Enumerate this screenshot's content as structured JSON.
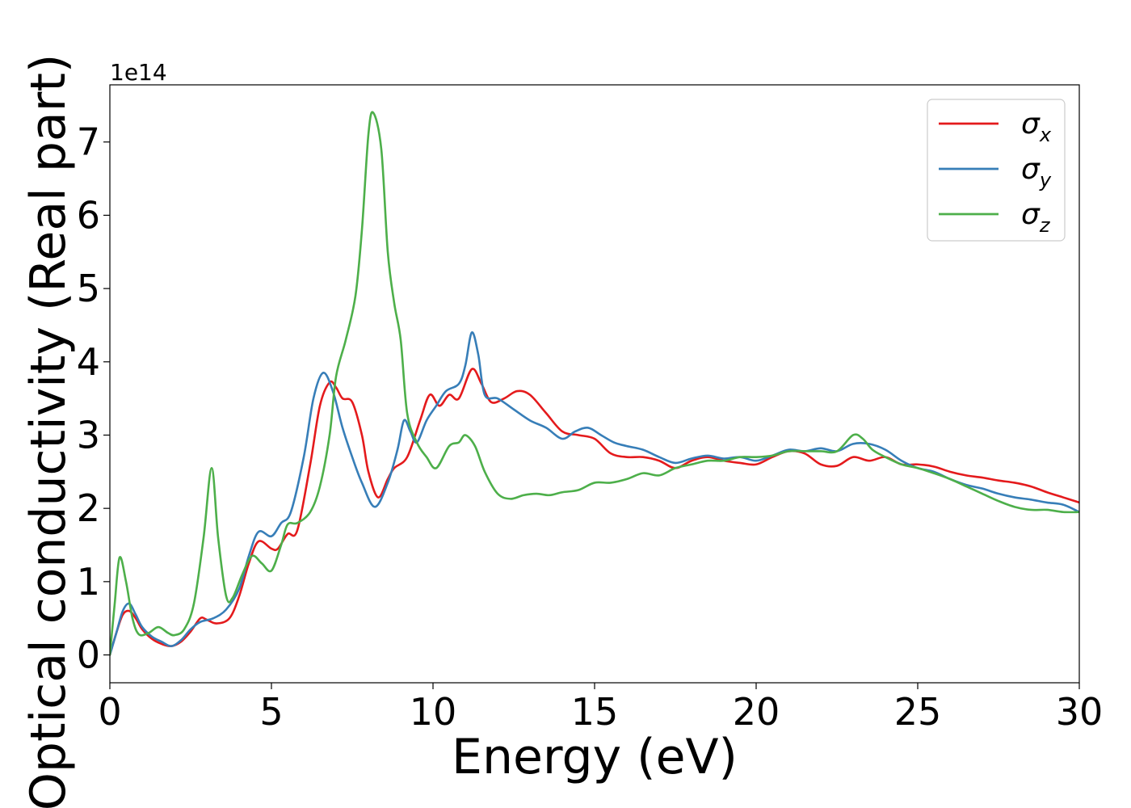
{
  "chart_data": {
    "type": "line",
    "title": "",
    "xlabel": "Energy (eV)",
    "ylabel": "Optical conductivity (Real part)",
    "y_offset_label": "1e14",
    "xlim": [
      0,
      30
    ],
    "ylim": [
      -0.38,
      7.78
    ],
    "y_scale_factor": 100000000000000.0,
    "xticks": [
      0,
      5,
      10,
      15,
      20,
      25,
      30
    ],
    "yticks": [
      0,
      1,
      2,
      3,
      4,
      5,
      6,
      7
    ],
    "grid": false,
    "legend": "top-right",
    "series": [
      {
        "name": "σx",
        "sym": "σ",
        "sub": "x",
        "color": "#e41a1c",
        "points": [
          [
            0,
            0
          ],
          [
            0.2,
            0.3
          ],
          [
            0.4,
            0.55
          ],
          [
            0.6,
            0.6
          ],
          [
            0.8,
            0.5
          ],
          [
            1.0,
            0.35
          ],
          [
            1.3,
            0.22
          ],
          [
            1.6,
            0.15
          ],
          [
            1.9,
            0.12
          ],
          [
            2.2,
            0.18
          ],
          [
            2.5,
            0.32
          ],
          [
            2.8,
            0.5
          ],
          [
            3.0,
            0.48
          ],
          [
            3.3,
            0.43
          ],
          [
            3.7,
            0.5
          ],
          [
            4.0,
            0.8
          ],
          [
            4.3,
            1.25
          ],
          [
            4.6,
            1.55
          ],
          [
            5.0,
            1.45
          ],
          [
            5.2,
            1.45
          ],
          [
            5.5,
            1.65
          ],
          [
            5.8,
            1.7
          ],
          [
            6.2,
            2.6
          ],
          [
            6.5,
            3.4
          ],
          [
            6.8,
            3.72
          ],
          [
            7.0,
            3.65
          ],
          [
            7.2,
            3.5
          ],
          [
            7.5,
            3.45
          ],
          [
            7.8,
            3.0
          ],
          [
            8.0,
            2.5
          ],
          [
            8.3,
            2.15
          ],
          [
            8.6,
            2.4
          ],
          [
            8.8,
            2.55
          ],
          [
            9.2,
            2.7
          ],
          [
            9.6,
            3.2
          ],
          [
            9.9,
            3.55
          ],
          [
            10.2,
            3.4
          ],
          [
            10.5,
            3.55
          ],
          [
            10.8,
            3.5
          ],
          [
            11.2,
            3.9
          ],
          [
            11.5,
            3.7
          ],
          [
            11.8,
            3.45
          ],
          [
            12.2,
            3.5
          ],
          [
            12.6,
            3.6
          ],
          [
            13.0,
            3.55
          ],
          [
            13.5,
            3.3
          ],
          [
            14.0,
            3.05
          ],
          [
            14.5,
            3.0
          ],
          [
            15.0,
            2.95
          ],
          [
            15.5,
            2.75
          ],
          [
            16.0,
            2.7
          ],
          [
            16.5,
            2.7
          ],
          [
            17.0,
            2.65
          ],
          [
            17.5,
            2.55
          ],
          [
            18.0,
            2.65
          ],
          [
            18.5,
            2.7
          ],
          [
            19.0,
            2.65
          ],
          [
            19.5,
            2.62
          ],
          [
            20.0,
            2.6
          ],
          [
            20.5,
            2.7
          ],
          [
            21.0,
            2.78
          ],
          [
            21.5,
            2.75
          ],
          [
            22.0,
            2.6
          ],
          [
            22.5,
            2.58
          ],
          [
            23.0,
            2.7
          ],
          [
            23.5,
            2.65
          ],
          [
            24.0,
            2.7
          ],
          [
            24.5,
            2.6
          ],
          [
            25.0,
            2.6
          ],
          [
            25.5,
            2.57
          ],
          [
            26.0,
            2.5
          ],
          [
            26.5,
            2.45
          ],
          [
            27.0,
            2.42
          ],
          [
            27.5,
            2.38
          ],
          [
            28.0,
            2.35
          ],
          [
            28.5,
            2.3
          ],
          [
            29.0,
            2.22
          ],
          [
            29.5,
            2.15
          ],
          [
            30.0,
            2.08
          ]
        ]
      },
      {
        "name": "σy",
        "sym": "σ",
        "sub": "y",
        "color": "#377eb8",
        "points": [
          [
            0,
            0
          ],
          [
            0.2,
            0.3
          ],
          [
            0.4,
            0.6
          ],
          [
            0.6,
            0.7
          ],
          [
            0.8,
            0.55
          ],
          [
            1.0,
            0.38
          ],
          [
            1.3,
            0.25
          ],
          [
            1.6,
            0.18
          ],
          [
            1.9,
            0.12
          ],
          [
            2.2,
            0.2
          ],
          [
            2.5,
            0.35
          ],
          [
            2.8,
            0.45
          ],
          [
            3.2,
            0.5
          ],
          [
            3.6,
            0.62
          ],
          [
            4.0,
            0.9
          ],
          [
            4.3,
            1.35
          ],
          [
            4.6,
            1.68
          ],
          [
            5.0,
            1.62
          ],
          [
            5.3,
            1.8
          ],
          [
            5.6,
            1.95
          ],
          [
            6.0,
            2.7
          ],
          [
            6.3,
            3.5
          ],
          [
            6.6,
            3.85
          ],
          [
            6.9,
            3.6
          ],
          [
            7.2,
            3.1
          ],
          [
            7.5,
            2.7
          ],
          [
            7.8,
            2.35
          ],
          [
            8.2,
            2.02
          ],
          [
            8.6,
            2.35
          ],
          [
            8.9,
            2.8
          ],
          [
            9.1,
            3.2
          ],
          [
            9.3,
            3.05
          ],
          [
            9.5,
            2.9
          ],
          [
            9.8,
            3.2
          ],
          [
            10.1,
            3.4
          ],
          [
            10.4,
            3.6
          ],
          [
            10.8,
            3.7
          ],
          [
            11.0,
            3.95
          ],
          [
            11.2,
            4.4
          ],
          [
            11.4,
            4.1
          ],
          [
            11.6,
            3.55
          ],
          [
            12.0,
            3.5
          ],
          [
            12.5,
            3.35
          ],
          [
            13.0,
            3.2
          ],
          [
            13.5,
            3.1
          ],
          [
            14.0,
            2.95
          ],
          [
            14.4,
            3.05
          ],
          [
            14.8,
            3.1
          ],
          [
            15.2,
            3.0
          ],
          [
            15.6,
            2.9
          ],
          [
            16.0,
            2.85
          ],
          [
            16.5,
            2.8
          ],
          [
            17.0,
            2.7
          ],
          [
            17.5,
            2.62
          ],
          [
            18.0,
            2.68
          ],
          [
            18.5,
            2.72
          ],
          [
            19.0,
            2.68
          ],
          [
            19.5,
            2.7
          ],
          [
            20.0,
            2.65
          ],
          [
            20.5,
            2.72
          ],
          [
            21.0,
            2.8
          ],
          [
            21.5,
            2.78
          ],
          [
            22.0,
            2.82
          ],
          [
            22.5,
            2.78
          ],
          [
            23.0,
            2.88
          ],
          [
            23.5,
            2.88
          ],
          [
            24.0,
            2.8
          ],
          [
            24.5,
            2.65
          ],
          [
            25.0,
            2.55
          ],
          [
            25.5,
            2.5
          ],
          [
            26.0,
            2.4
          ],
          [
            26.5,
            2.32
          ],
          [
            27.0,
            2.27
          ],
          [
            27.5,
            2.2
          ],
          [
            28.0,
            2.15
          ],
          [
            28.5,
            2.12
          ],
          [
            29.0,
            2.08
          ],
          [
            29.5,
            2.05
          ],
          [
            30.0,
            1.95
          ]
        ]
      },
      {
        "name": "σz",
        "sym": "σ",
        "sub": "z",
        "color": "#4daf4a",
        "points": [
          [
            0,
            0
          ],
          [
            0.15,
            0.7
          ],
          [
            0.3,
            1.33
          ],
          [
            0.5,
            1.0
          ],
          [
            0.7,
            0.5
          ],
          [
            0.9,
            0.28
          ],
          [
            1.2,
            0.3
          ],
          [
            1.5,
            0.38
          ],
          [
            1.8,
            0.3
          ],
          [
            2.0,
            0.27
          ],
          [
            2.3,
            0.35
          ],
          [
            2.6,
            0.7
          ],
          [
            2.9,
            1.6
          ],
          [
            3.15,
            2.55
          ],
          [
            3.35,
            1.6
          ],
          [
            3.6,
            0.8
          ],
          [
            3.8,
            0.78
          ],
          [
            4.1,
            1.1
          ],
          [
            4.4,
            1.35
          ],
          [
            4.7,
            1.25
          ],
          [
            5.0,
            1.15
          ],
          [
            5.3,
            1.5
          ],
          [
            5.5,
            1.78
          ],
          [
            5.8,
            1.8
          ],
          [
            6.2,
            1.95
          ],
          [
            6.5,
            2.3
          ],
          [
            6.8,
            3.0
          ],
          [
            7.0,
            3.8
          ],
          [
            7.3,
            4.3
          ],
          [
            7.6,
            4.9
          ],
          [
            7.8,
            5.8
          ],
          [
            8.0,
            7.1
          ],
          [
            8.15,
            7.4
          ],
          [
            8.4,
            6.9
          ],
          [
            8.6,
            5.5
          ],
          [
            8.8,
            4.8
          ],
          [
            9.0,
            4.3
          ],
          [
            9.2,
            3.3
          ],
          [
            9.5,
            2.9
          ],
          [
            9.8,
            2.7
          ],
          [
            10.1,
            2.55
          ],
          [
            10.5,
            2.85
          ],
          [
            10.8,
            2.9
          ],
          [
            11.0,
            3.0
          ],
          [
            11.3,
            2.85
          ],
          [
            11.6,
            2.5
          ],
          [
            12.0,
            2.2
          ],
          [
            12.4,
            2.13
          ],
          [
            12.8,
            2.18
          ],
          [
            13.2,
            2.2
          ],
          [
            13.6,
            2.18
          ],
          [
            14.0,
            2.22
          ],
          [
            14.5,
            2.25
          ],
          [
            15.0,
            2.35
          ],
          [
            15.5,
            2.35
          ],
          [
            16.0,
            2.4
          ],
          [
            16.5,
            2.48
          ],
          [
            17.0,
            2.45
          ],
          [
            17.5,
            2.55
          ],
          [
            18.0,
            2.6
          ],
          [
            18.5,
            2.65
          ],
          [
            19.0,
            2.65
          ],
          [
            19.5,
            2.7
          ],
          [
            20.0,
            2.7
          ],
          [
            20.5,
            2.72
          ],
          [
            21.0,
            2.78
          ],
          [
            21.5,
            2.78
          ],
          [
            22.0,
            2.78
          ],
          [
            22.5,
            2.78
          ],
          [
            23.0,
            3.0
          ],
          [
            23.3,
            2.95
          ],
          [
            23.6,
            2.8
          ],
          [
            24.0,
            2.7
          ],
          [
            24.5,
            2.6
          ],
          [
            25.0,
            2.55
          ],
          [
            25.5,
            2.48
          ],
          [
            26.0,
            2.4
          ],
          [
            26.5,
            2.3
          ],
          [
            27.0,
            2.2
          ],
          [
            27.5,
            2.1
          ],
          [
            28.0,
            2.02
          ],
          [
            28.5,
            1.98
          ],
          [
            29.0,
            1.98
          ],
          [
            29.5,
            1.95
          ],
          [
            30.0,
            1.95
          ]
        ]
      }
    ]
  }
}
